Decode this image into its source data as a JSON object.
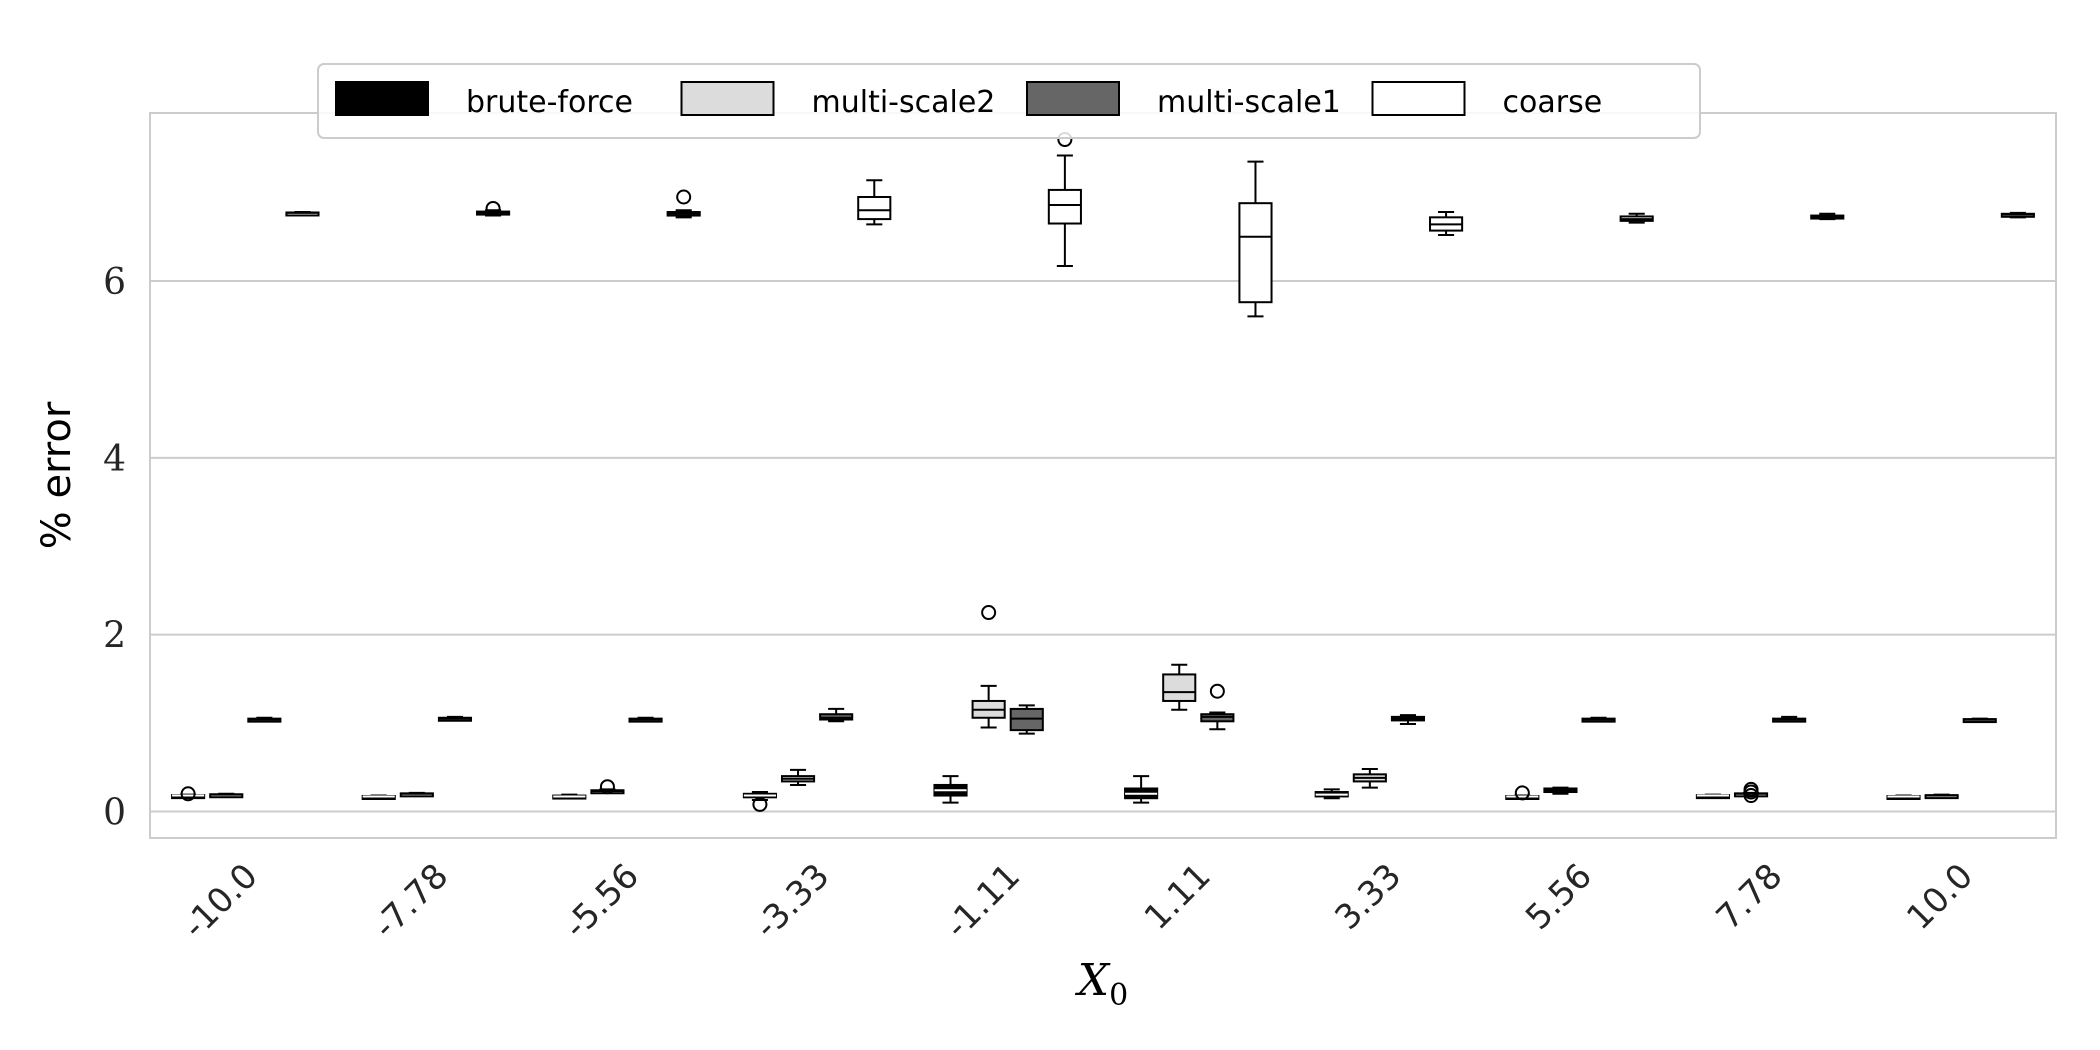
{
  "chart_data": {
    "type": "box",
    "title": "",
    "xlabel": "X_0",
    "ylabel": "% error",
    "ylim": [
      -0.3,
      7.9
    ],
    "yticks": [
      0,
      2,
      4,
      6
    ],
    "grid": "y",
    "legend_position": "top",
    "categories": [
      "-10.0",
      "-7.78",
      "-5.56",
      "-3.33",
      "-1.11",
      "1.11",
      "3.33",
      "5.56",
      "7.78",
      "10.0"
    ],
    "series": [
      {
        "name": "brute-force",
        "color": "#000000",
        "boxes": [
          {
            "whislo": 0.17,
            "q1": 0.175,
            "med": 0.18,
            "q3": 0.185,
            "whishi": 0.19,
            "fliers": [
              0.2
            ]
          },
          {
            "whislo": 0.16,
            "q1": 0.165,
            "med": 0.17,
            "q3": 0.175,
            "whishi": 0.18,
            "fliers": []
          },
          {
            "whislo": 0.15,
            "q1": 0.16,
            "med": 0.17,
            "q3": 0.18,
            "whishi": 0.19,
            "fliers": []
          },
          {
            "whislo": 0.13,
            "q1": 0.16,
            "med": 0.18,
            "q3": 0.2,
            "whishi": 0.22,
            "fliers": [
              0.08
            ]
          },
          {
            "whislo": 0.1,
            "q1": 0.18,
            "med": 0.24,
            "q3": 0.3,
            "whishi": 0.4,
            "fliers": []
          },
          {
            "whislo": 0.1,
            "q1": 0.15,
            "med": 0.2,
            "q3": 0.26,
            "whishi": 0.4,
            "fliers": []
          },
          {
            "whislo": 0.15,
            "q1": 0.17,
            "med": 0.19,
            "q3": 0.22,
            "whishi": 0.25,
            "fliers": []
          },
          {
            "whislo": 0.16,
            "q1": 0.165,
            "med": 0.17,
            "q3": 0.175,
            "whishi": 0.18,
            "fliers": [
              0.21
            ]
          },
          {
            "whislo": 0.17,
            "q1": 0.175,
            "med": 0.18,
            "q3": 0.185,
            "whishi": 0.19,
            "fliers": []
          },
          {
            "whislo": 0.16,
            "q1": 0.165,
            "med": 0.17,
            "q3": 0.175,
            "whishi": 0.18,
            "fliers": []
          }
        ]
      },
      {
        "name": "multi-scale2",
        "color": "#dcdcdc",
        "boxes": [
          {
            "whislo": 0.18,
            "q1": 0.185,
            "med": 0.19,
            "q3": 0.195,
            "whishi": 0.2,
            "fliers": []
          },
          {
            "whislo": 0.19,
            "q1": 0.195,
            "med": 0.2,
            "q3": 0.205,
            "whishi": 0.21,
            "fliers": []
          },
          {
            "whislo": 0.21,
            "q1": 0.22,
            "med": 0.23,
            "q3": 0.24,
            "whishi": 0.25,
            "fliers": [
              0.28
            ]
          },
          {
            "whislo": 0.3,
            "q1": 0.34,
            "med": 0.37,
            "q3": 0.4,
            "whishi": 0.47,
            "fliers": []
          },
          {
            "whislo": 0.95,
            "q1": 1.06,
            "med": 1.15,
            "q3": 1.25,
            "whishi": 1.42,
            "fliers": [
              2.25
            ]
          },
          {
            "whislo": 1.15,
            "q1": 1.25,
            "med": 1.35,
            "q3": 1.55,
            "whishi": 1.66,
            "fliers": []
          },
          {
            "whislo": 0.27,
            "q1": 0.34,
            "med": 0.38,
            "q3": 0.42,
            "whishi": 0.48,
            "fliers": []
          },
          {
            "whislo": 0.2,
            "q1": 0.22,
            "med": 0.24,
            "q3": 0.26,
            "whishi": 0.27,
            "fliers": []
          },
          {
            "whislo": 0.19,
            "q1": 0.195,
            "med": 0.2,
            "q3": 0.205,
            "whishi": 0.21,
            "fliers": [
              0.18,
              0.22,
              0.25
            ]
          },
          {
            "whislo": 0.17,
            "q1": 0.175,
            "med": 0.18,
            "q3": 0.185,
            "whishi": 0.19,
            "fliers": []
          }
        ]
      },
      {
        "name": "multi-scale1",
        "color": "#666666",
        "boxes": [
          {
            "whislo": 1.03,
            "q1": 1.035,
            "med": 1.04,
            "q3": 1.05,
            "whishi": 1.06,
            "fliers": []
          },
          {
            "whislo": 1.04,
            "q1": 1.045,
            "med": 1.05,
            "q3": 1.06,
            "whishi": 1.07,
            "fliers": []
          },
          {
            "whislo": 1.03,
            "q1": 1.035,
            "med": 1.04,
            "q3": 1.05,
            "whishi": 1.06,
            "fliers": []
          },
          {
            "whislo": 1.02,
            "q1": 1.04,
            "med": 1.06,
            "q3": 1.1,
            "whishi": 1.16,
            "fliers": []
          },
          {
            "whislo": 0.88,
            "q1": 0.92,
            "med": 1.05,
            "q3": 1.16,
            "whishi": 1.2,
            "fliers": []
          },
          {
            "whislo": 0.93,
            "q1": 1.02,
            "med": 1.07,
            "q3": 1.1,
            "whishi": 1.12,
            "fliers": [
              1.36
            ]
          },
          {
            "whislo": 0.99,
            "q1": 1.03,
            "med": 1.05,
            "q3": 1.07,
            "whishi": 1.09,
            "fliers": []
          },
          {
            "whislo": 1.03,
            "q1": 1.035,
            "med": 1.04,
            "q3": 1.05,
            "whishi": 1.06,
            "fliers": []
          },
          {
            "whislo": 1.02,
            "q1": 1.03,
            "med": 1.04,
            "q3": 1.05,
            "whishi": 1.07,
            "fliers": []
          },
          {
            "whislo": 1.03,
            "q1": 1.035,
            "med": 1.04,
            "q3": 1.045,
            "whishi": 1.05,
            "fliers": []
          }
        ]
      },
      {
        "name": "coarse",
        "color": "#ffffff",
        "boxes": [
          {
            "whislo": 6.76,
            "q1": 6.765,
            "med": 6.77,
            "q3": 6.775,
            "whishi": 6.78,
            "fliers": []
          },
          {
            "whislo": 6.74,
            "q1": 6.755,
            "med": 6.77,
            "q3": 6.785,
            "whishi": 6.8,
            "fliers": [
              6.82
            ]
          },
          {
            "whislo": 6.72,
            "q1": 6.74,
            "med": 6.76,
            "q3": 6.78,
            "whishi": 6.8,
            "fliers": [
              6.95
            ]
          },
          {
            "whislo": 6.64,
            "q1": 6.7,
            "med": 6.8,
            "q3": 6.95,
            "whishi": 7.14,
            "fliers": []
          },
          {
            "whislo": 6.17,
            "q1": 6.65,
            "med": 6.86,
            "q3": 7.03,
            "whishi": 7.42,
            "fliers": [
              7.6
            ]
          },
          {
            "whislo": 5.6,
            "q1": 5.76,
            "med": 6.5,
            "q3": 6.88,
            "whishi": 7.35,
            "fliers": []
          },
          {
            "whislo": 6.52,
            "q1": 6.57,
            "med": 6.64,
            "q3": 6.72,
            "whishi": 6.78,
            "fliers": []
          },
          {
            "whislo": 6.66,
            "q1": 6.68,
            "med": 6.7,
            "q3": 6.73,
            "whishi": 6.76,
            "fliers": []
          },
          {
            "whislo": 6.7,
            "q1": 6.71,
            "med": 6.72,
            "q3": 6.74,
            "whishi": 6.76,
            "fliers": []
          },
          {
            "whislo": 6.72,
            "q1": 6.73,
            "med": 6.75,
            "q3": 6.76,
            "whishi": 6.77,
            "fliers": []
          }
        ]
      }
    ]
  }
}
